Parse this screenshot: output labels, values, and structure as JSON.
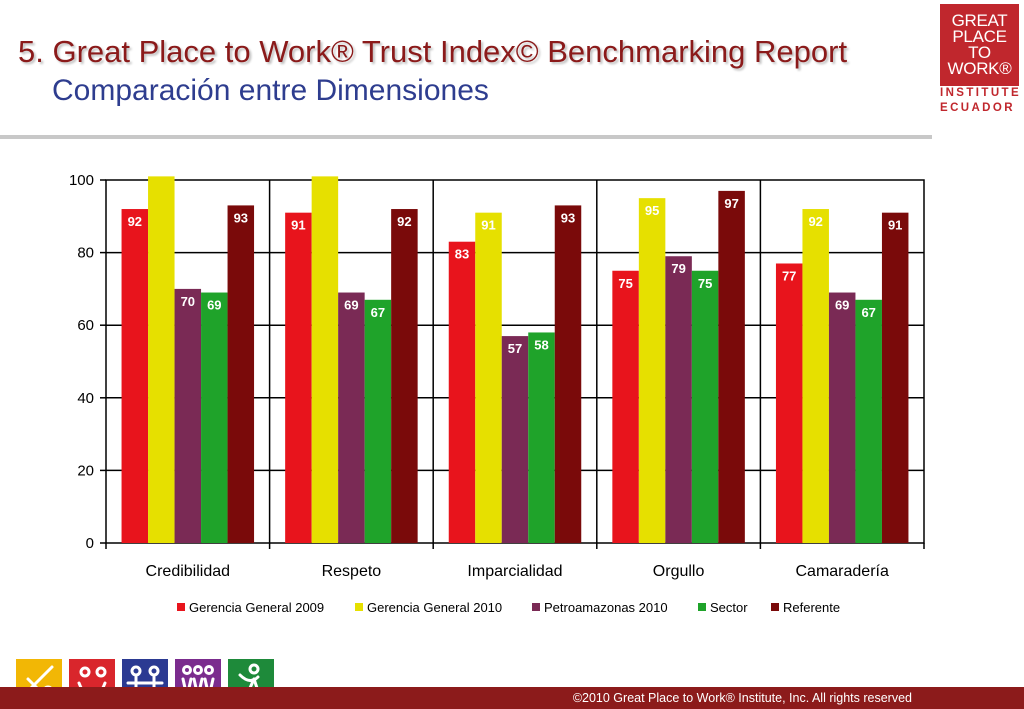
{
  "header": {
    "title_line1": "5. Great Place to Work® Trust Index© Benchmarking Report",
    "title_line2": "Comparación entre Dimensiones"
  },
  "logo": {
    "lines": [
      "GREAT",
      "PLACE",
      "TO",
      "WORK®"
    ],
    "sub1": "INSTITUTE",
    "sub2": "ECUADOR"
  },
  "footer": {
    "copyright": "©2010 Great Place to Work® Institute, Inc. All rights reserved"
  },
  "icons": [
    {
      "name": "credibilidad-icon",
      "color": "#f2b705"
    },
    {
      "name": "respeto-icon",
      "color": "#d9262c"
    },
    {
      "name": "imparcialidad-icon",
      "color": "#2b3a92"
    },
    {
      "name": "orgullo-icon",
      "color": "#7b2c8e"
    },
    {
      "name": "camaraderia-icon",
      "color": "#1e8a3a"
    }
  ],
  "chart_data": {
    "type": "bar",
    "categories": [
      "Credibilidad",
      "Respeto",
      "Imparcialidad",
      "Orgullo",
      "Camaradería"
    ],
    "ylim": [
      0,
      100
    ],
    "yticks": [
      0,
      20,
      40,
      60,
      80,
      100
    ],
    "grid": true,
    "legend": "bottom",
    "series": [
      {
        "name": "Gerencia General 2009",
        "color": "#e8141c",
        "values": [
          92,
          91,
          83,
          75,
          77
        ],
        "labels": [
          "92",
          "91",
          "83",
          "75",
          "77"
        ]
      },
      {
        "name": "Gerencia General 2010",
        "color": "#e6e000",
        "values": [
          101,
          101,
          91,
          95,
          92
        ],
        "labels": [
          "",
          "",
          "91",
          "95",
          "92"
        ]
      },
      {
        "name": "Petroamazonas 2010",
        "color": "#7a2a55",
        "values": [
          70,
          69,
          57,
          79,
          69
        ],
        "labels": [
          "70",
          "69",
          "57",
          "79",
          "69"
        ]
      },
      {
        "name": "Sector",
        "color": "#1fa32a",
        "values": [
          69,
          67,
          58,
          75,
          67
        ],
        "labels": [
          "69",
          "67",
          "58",
          "75",
          "67"
        ]
      },
      {
        "name": "Referente",
        "color": "#7a0a0a",
        "values": [
          93,
          92,
          93,
          97,
          91
        ],
        "labels": [
          "93",
          "92",
          "93",
          "97",
          "91"
        ]
      }
    ]
  }
}
